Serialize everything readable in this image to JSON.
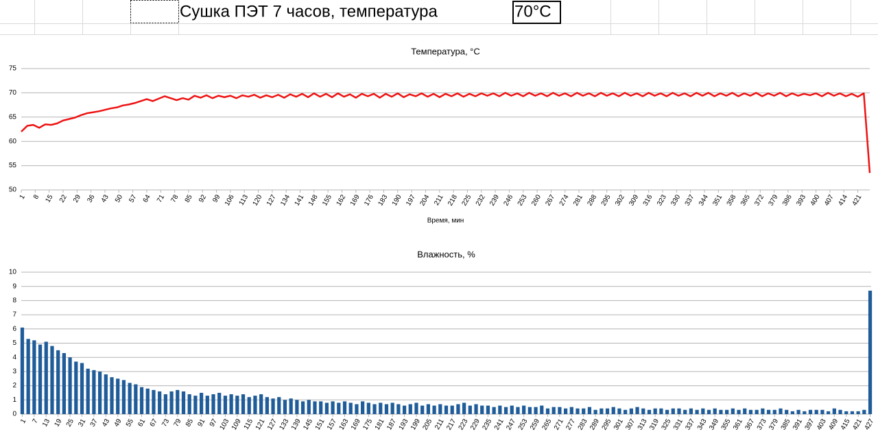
{
  "header": {
    "title": "Сушка ПЭТ 7 часов, температура",
    "setpoint": "70°C"
  },
  "chart_data": [
    {
      "type": "line",
      "title": "Температура, °C",
      "x_label": "Время, мин",
      "color": "#ee1111",
      "grid": true,
      "xlim": [
        1,
        427
      ],
      "ylim": [
        50,
        75
      ],
      "yticks": [
        50,
        55,
        60,
        65,
        70,
        75
      ],
      "xticks": [
        1,
        8,
        15,
        22,
        29,
        36,
        43,
        50,
        57,
        64,
        71,
        78,
        85,
        92,
        99,
        106,
        113,
        120,
        127,
        134,
        141,
        148,
        155,
        162,
        169,
        176,
        183,
        190,
        197,
        204,
        211,
        218,
        225,
        232,
        239,
        246,
        253,
        260,
        267,
        274,
        281,
        288,
        295,
        302,
        309,
        316,
        323,
        330,
        337,
        344,
        351,
        358,
        365,
        372,
        379,
        386,
        393,
        400,
        407,
        414,
        421
      ],
      "x": [
        1,
        4,
        7,
        10,
        13,
        16,
        19,
        22,
        25,
        28,
        31,
        34,
        37,
        40,
        43,
        46,
        49,
        52,
        55,
        58,
        61,
        64,
        67,
        70,
        73,
        76,
        79,
        82,
        85,
        88,
        91,
        94,
        97,
        100,
        103,
        106,
        109,
        112,
        115,
        118,
        121,
        124,
        127,
        130,
        133,
        136,
        139,
        142,
        145,
        148,
        151,
        154,
        157,
        160,
        163,
        166,
        169,
        172,
        175,
        178,
        181,
        184,
        187,
        190,
        193,
        196,
        199,
        202,
        205,
        208,
        211,
        214,
        217,
        220,
        223,
        226,
        229,
        232,
        235,
        238,
        241,
        244,
        247,
        250,
        253,
        256,
        259,
        262,
        265,
        268,
        271,
        274,
        277,
        280,
        283,
        286,
        289,
        292,
        295,
        298,
        301,
        304,
        307,
        310,
        313,
        316,
        319,
        322,
        325,
        328,
        331,
        334,
        337,
        340,
        343,
        346,
        349,
        352,
        355,
        358,
        361,
        364,
        367,
        370,
        373,
        376,
        379,
        382,
        385,
        388,
        391,
        394,
        397,
        400,
        403,
        406,
        409,
        412,
        415,
        418,
        421,
        424,
        427
      ],
      "values": [
        62,
        63.2,
        63.4,
        62.8,
        63.5,
        63.4,
        63.7,
        64.3,
        64.6,
        64.9,
        65.4,
        65.8,
        66,
        66.2,
        66.5,
        66.8,
        67,
        67.4,
        67.6,
        67.9,
        68.3,
        68.7,
        68.3,
        68.8,
        69.3,
        68.9,
        68.5,
        68.9,
        68.6,
        69.4,
        69,
        69.5,
        68.9,
        69.4,
        69.1,
        69.4,
        68.9,
        69.5,
        69.2,
        69.6,
        69,
        69.5,
        69.1,
        69.6,
        69,
        69.7,
        69.2,
        69.8,
        69.1,
        69.9,
        69.2,
        69.8,
        69.1,
        69.9,
        69.2,
        69.7,
        69,
        69.8,
        69.3,
        69.8,
        69,
        69.8,
        69.2,
        69.9,
        69.1,
        69.7,
        69.3,
        69.9,
        69.2,
        69.8,
        69.1,
        69.8,
        69.3,
        69.9,
        69.2,
        69.8,
        69.3,
        69.9,
        69.4,
        69.9,
        69.3,
        70,
        69.4,
        69.9,
        69.3,
        70,
        69.4,
        69.9,
        69.3,
        70,
        69.4,
        69.9,
        69.3,
        70,
        69.4,
        69.9,
        69.3,
        70,
        69.4,
        69.9,
        69.3,
        70,
        69.4,
        69.9,
        69.3,
        70,
        69.4,
        69.9,
        69.3,
        70,
        69.4,
        69.9,
        69.3,
        70,
        69.4,
        70,
        69.3,
        69.9,
        69.4,
        70,
        69.3,
        69.9,
        69.4,
        70,
        69.3,
        69.9,
        69.4,
        70,
        69.3,
        69.9,
        69.4,
        69.8,
        69.5,
        69.9,
        69.3,
        70,
        69.4,
        69.9,
        69.3,
        69.8,
        69.2,
        69.9,
        53.5
      ]
    },
    {
      "type": "bar",
      "title": "Влажность, %",
      "color": "#1f5c99",
      "grid": true,
      "xlim": [
        0.5,
        427.5
      ],
      "ylim": [
        0,
        10
      ],
      "yticks": [
        0,
        1,
        2,
        3,
        4,
        5,
        6,
        7,
        8,
        9,
        10
      ],
      "xticks": [
        1,
        7,
        13,
        19,
        25,
        31,
        37,
        43,
        49,
        55,
        61,
        67,
        73,
        79,
        85,
        91,
        97,
        103,
        109,
        115,
        121,
        127,
        133,
        139,
        145,
        151,
        157,
        163,
        169,
        175,
        181,
        187,
        193,
        199,
        205,
        211,
        217,
        223,
        229,
        235,
        241,
        247,
        253,
        259,
        265,
        271,
        277,
        283,
        289,
        295,
        301,
        307,
        313,
        319,
        325,
        331,
        337,
        343,
        349,
        355,
        361,
        367,
        373,
        379,
        385,
        391,
        397,
        403,
        409,
        415,
        421,
        427
      ],
      "x": [
        1,
        4,
        7,
        10,
        13,
        16,
        19,
        22,
        25,
        28,
        31,
        34,
        37,
        40,
        43,
        46,
        49,
        52,
        55,
        58,
        61,
        64,
        67,
        70,
        73,
        76,
        79,
        82,
        85,
        88,
        91,
        94,
        97,
        100,
        103,
        106,
        109,
        112,
        115,
        118,
        121,
        124,
        127,
        130,
        133,
        136,
        139,
        142,
        145,
        148,
        151,
        154,
        157,
        160,
        163,
        166,
        169,
        172,
        175,
        178,
        181,
        184,
        187,
        190,
        193,
        196,
        199,
        202,
        205,
        208,
        211,
        214,
        217,
        220,
        223,
        226,
        229,
        232,
        235,
        238,
        241,
        244,
        247,
        250,
        253,
        256,
        259,
        262,
        265,
        268,
        271,
        274,
        277,
        280,
        283,
        286,
        289,
        292,
        295,
        298,
        301,
        304,
        307,
        310,
        313,
        316,
        319,
        322,
        325,
        328,
        331,
        334,
        337,
        340,
        343,
        346,
        349,
        352,
        355,
        358,
        361,
        364,
        367,
        370,
        373,
        376,
        379,
        382,
        385,
        388,
        391,
        394,
        397,
        400,
        403,
        406,
        409,
        412,
        415,
        418,
        421,
        424,
        427
      ],
      "values": [
        6.1,
        5.3,
        5.2,
        4.9,
        5.1,
        4.8,
        4.5,
        4.3,
        4.0,
        3.7,
        3.6,
        3.2,
        3.1,
        3.0,
        2.8,
        2.6,
        2.5,
        2.4,
        2.2,
        2.1,
        1.9,
        1.8,
        1.7,
        1.6,
        1.4,
        1.6,
        1.7,
        1.6,
        1.4,
        1.3,
        1.5,
        1.3,
        1.4,
        1.5,
        1.3,
        1.4,
        1.3,
        1.4,
        1.2,
        1.3,
        1.4,
        1.2,
        1.1,
        1.2,
        1.0,
        1.1,
        1.0,
        0.9,
        1.0,
        0.9,
        0.9,
        0.8,
        0.9,
        0.8,
        0.9,
        0.8,
        0.7,
        0.9,
        0.8,
        0.7,
        0.8,
        0.7,
        0.8,
        0.7,
        0.6,
        0.7,
        0.8,
        0.6,
        0.7,
        0.6,
        0.7,
        0.6,
        0.6,
        0.7,
        0.8,
        0.6,
        0.7,
        0.6,
        0.6,
        0.5,
        0.6,
        0.5,
        0.6,
        0.5,
        0.6,
        0.5,
        0.5,
        0.6,
        0.4,
        0.5,
        0.5,
        0.4,
        0.5,
        0.4,
        0.4,
        0.5,
        0.3,
        0.4,
        0.4,
        0.5,
        0.4,
        0.3,
        0.4,
        0.5,
        0.4,
        0.3,
        0.4,
        0.4,
        0.3,
        0.4,
        0.4,
        0.3,
        0.4,
        0.3,
        0.4,
        0.3,
        0.4,
        0.3,
        0.3,
        0.4,
        0.3,
        0.4,
        0.3,
        0.3,
        0.4,
        0.3,
        0.3,
        0.4,
        0.3,
        0.2,
        0.3,
        0.2,
        0.3,
        0.3,
        0.3,
        0.2,
        0.4,
        0.3,
        0.2,
        0.2,
        0.2,
        0.3,
        8.7
      ]
    }
  ]
}
